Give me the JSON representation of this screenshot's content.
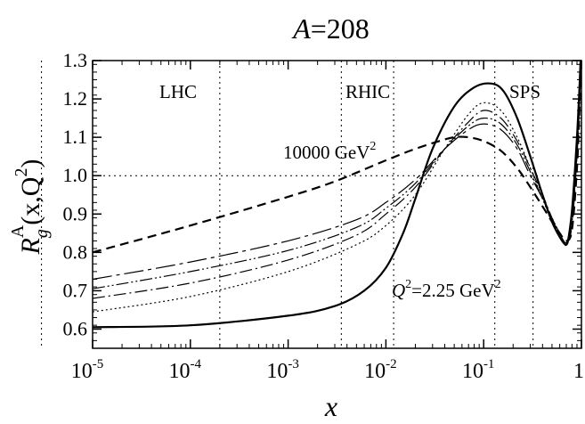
{
  "chart_data": {
    "type": "line",
    "title": "A=208",
    "title_prefix": "A",
    "title_suffix": "=208",
    "xlabel": "x",
    "ylabel": {
      "base": "R",
      "sub": "g",
      "sup": "A",
      "args": "(x,Q",
      "args_sup": "2",
      "args_close": ")"
    },
    "x_scale": "log",
    "xlim": [
      1e-05,
      1
    ],
    "ylim": [
      0.55,
      1.3
    ],
    "x_ticks": [
      {
        "value": 1e-05,
        "base": "10",
        "exp": "-5"
      },
      {
        "value": 0.0001,
        "base": "10",
        "exp": "-4"
      },
      {
        "value": 0.001,
        "base": "10",
        "exp": "-3"
      },
      {
        "value": 0.01,
        "base": "10",
        "exp": "-2"
      },
      {
        "value": 0.1,
        "base": "10",
        "exp": "-1"
      },
      {
        "value": 1,
        "base": "1",
        "exp": ""
      }
    ],
    "y_ticks": [
      "0.6",
      "0.7",
      "0.8",
      "0.9",
      "1.0",
      "1.1",
      "1.2",
      "1.3"
    ],
    "regions": [
      {
        "name": "LHC",
        "bounds": [
          3e-06,
          0.0002
        ]
      },
      {
        "name": "RHIC",
        "bounds": [
          0.0035,
          0.012
        ]
      },
      {
        "name": "SPS",
        "bounds": [
          0.13,
          0.32
        ]
      }
    ],
    "reference_line": {
      "y": 1.0
    },
    "annotations": [
      {
        "text": "10000 GeV",
        "sup": "2",
        "at": [
          0.0011,
          1.07
        ]
      },
      {
        "text": "=2.25 GeV",
        "prefix": "Q",
        "prefix_sup": "2",
        "sup": "2",
        "at": [
          0.016,
          0.725
        ]
      }
    ],
    "series": [
      {
        "style": "solid",
        "x": [
          1e-05,
          0.0001,
          0.001,
          0.003,
          0.006,
          0.01,
          0.015,
          0.02,
          0.03,
          0.05,
          0.08,
          0.12,
          0.16,
          0.22,
          0.3,
          0.4,
          0.5,
          0.6,
          0.7,
          0.75,
          0.8,
          0.85,
          0.9,
          0.95,
          0.98,
          1.0
        ],
        "y": [
          0.605,
          0.61,
          0.635,
          0.66,
          0.7,
          0.76,
          0.85,
          0.94,
          1.07,
          1.18,
          1.23,
          1.24,
          1.22,
          1.15,
          1.05,
          0.95,
          0.88,
          0.84,
          0.82,
          0.85,
          0.91,
          1.0,
          1.1,
          1.22,
          1.3,
          1.33
        ]
      },
      {
        "style": "dotted",
        "x": [
          1e-05,
          0.0001,
          0.001,
          0.005,
          0.01,
          0.02,
          0.04,
          0.07,
          0.1,
          0.15,
          0.22,
          0.3,
          0.4,
          0.5,
          0.6,
          0.7,
          0.8,
          0.9,
          0.95,
          0.98,
          1.0
        ],
        "y": [
          0.645,
          0.685,
          0.75,
          0.82,
          0.87,
          0.95,
          1.07,
          1.16,
          1.19,
          1.17,
          1.1,
          1.02,
          0.94,
          0.88,
          0.845,
          0.82,
          0.9,
          1.08,
          1.2,
          1.28,
          1.33
        ]
      },
      {
        "style": "dashdot",
        "x": [
          1e-05,
          0.0001,
          0.001,
          0.005,
          0.01,
          0.02,
          0.04,
          0.07,
          0.1,
          0.15,
          0.22,
          0.3,
          0.4,
          0.5,
          0.6,
          0.7,
          0.8,
          0.9,
          0.95,
          0.98,
          1.0
        ],
        "y": [
          0.68,
          0.72,
          0.78,
          0.845,
          0.9,
          0.97,
          1.07,
          1.14,
          1.17,
          1.15,
          1.09,
          1.02,
          0.95,
          0.89,
          0.85,
          0.825,
          0.89,
          1.07,
          1.19,
          1.28,
          1.33
        ]
      },
      {
        "style": "dashdotdot",
        "x": [
          1e-05,
          0.0001,
          0.001,
          0.005,
          0.01,
          0.02,
          0.04,
          0.07,
          0.1,
          0.15,
          0.22,
          0.3,
          0.4,
          0.5,
          0.6,
          0.7,
          0.8,
          0.9,
          0.95,
          0.98,
          1.0
        ],
        "y": [
          0.705,
          0.75,
          0.805,
          0.865,
          0.915,
          0.98,
          1.07,
          1.13,
          1.15,
          1.135,
          1.08,
          1.01,
          0.94,
          0.89,
          0.85,
          0.825,
          0.88,
          1.06,
          1.18,
          1.27,
          1.33
        ]
      },
      {
        "style": "longdash",
        "x": [
          1e-05,
          0.0001,
          0.001,
          0.005,
          0.01,
          0.02,
          0.04,
          0.07,
          0.1,
          0.15,
          0.22,
          0.3,
          0.4,
          0.5,
          0.6,
          0.7,
          0.8,
          0.9,
          0.95,
          0.98,
          1.0
        ],
        "y": [
          0.73,
          0.775,
          0.83,
          0.885,
          0.93,
          0.99,
          1.07,
          1.12,
          1.135,
          1.12,
          1.07,
          1.0,
          0.94,
          0.885,
          0.85,
          0.825,
          0.87,
          1.05,
          1.17,
          1.26,
          1.33
        ]
      },
      {
        "style": "dashed",
        "x": [
          1e-05,
          0.0001,
          0.001,
          0.003,
          0.01,
          0.02,
          0.035,
          0.05,
          0.07,
          0.1,
          0.15,
          0.22,
          0.3,
          0.4,
          0.5,
          0.6,
          0.7,
          0.8,
          0.9,
          0.95,
          0.98,
          1.0
        ],
        "y": [
          0.8,
          0.87,
          0.945,
          0.985,
          1.04,
          1.07,
          1.09,
          1.1,
          1.1,
          1.09,
          1.065,
          1.02,
          0.97,
          0.92,
          0.88,
          0.85,
          0.83,
          0.86,
          1.02,
          1.16,
          1.26,
          1.33
        ]
      }
    ]
  }
}
